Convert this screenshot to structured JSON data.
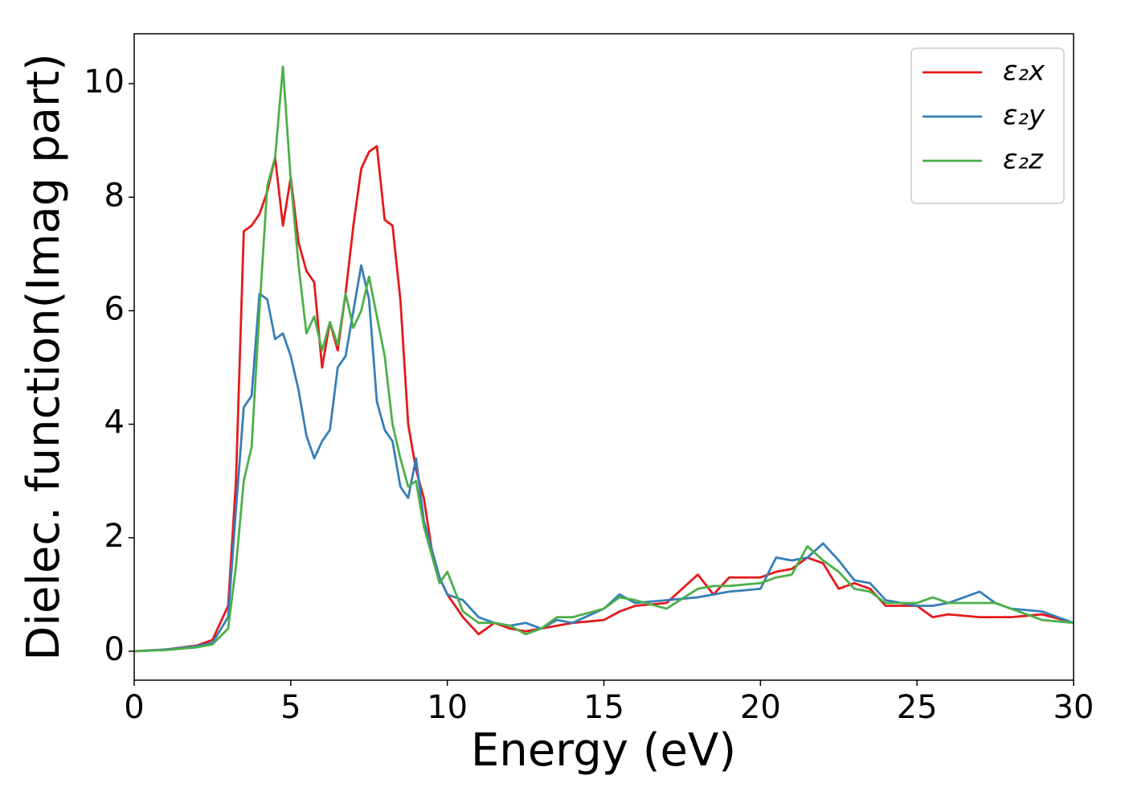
{
  "chart_data": {
    "type": "line",
    "xlabel": "Energy (eV)",
    "ylabel": "Dielec. function(Imag part)",
    "x": [
      0,
      1,
      2,
      2.5,
      3,
      3.25,
      3.5,
      3.75,
      4,
      4.25,
      4.5,
      4.75,
      5,
      5.25,
      5.5,
      5.75,
      6,
      6.25,
      6.5,
      6.75,
      7,
      7.25,
      7.5,
      7.75,
      8,
      8.25,
      8.5,
      8.75,
      9,
      9.25,
      9.5,
      9.75,
      10,
      10.5,
      11,
      11.5,
      12,
      12.5,
      13,
      13.5,
      14,
      15,
      15.5,
      16,
      17,
      18,
      18.5,
      19,
      20,
      20.5,
      21,
      21.5,
      22,
      22.5,
      23,
      23.5,
      24,
      25,
      25.5,
      26,
      27,
      27.5,
      28,
      29,
      30
    ],
    "series": [
      {
        "name": "ε₂x",
        "color": "#e41a1c",
        "values": [
          0,
          0.03,
          0.1,
          0.2,
          0.8,
          3,
          7.4,
          7.5,
          7.7,
          8.1,
          8.7,
          7.5,
          8.35,
          7.2,
          6.7,
          6.5,
          5.0,
          5.8,
          5.3,
          6.3,
          7.5,
          8.5,
          8.8,
          8.9,
          7.6,
          7.5,
          6.2,
          4.0,
          3.2,
          2.7,
          1.8,
          1.3,
          1.0,
          0.6,
          0.3,
          0.5,
          0.4,
          0.35,
          0.4,
          0.45,
          0.5,
          0.55,
          0.7,
          0.8,
          0.85,
          1.35,
          1.0,
          1.3,
          1.3,
          1.4,
          1.45,
          1.65,
          1.55,
          1.1,
          1.2,
          1.1,
          0.8,
          0.8,
          0.6,
          0.65,
          0.6,
          0.6,
          0.6,
          0.65,
          0.5
        ]
      },
      {
        "name": "ε₂y",
        "color": "#377eb8",
        "values": [
          0,
          0.03,
          0.09,
          0.15,
          0.6,
          2.5,
          4.3,
          4.5,
          6.3,
          6.2,
          5.5,
          5.6,
          5.2,
          4.6,
          3.8,
          3.4,
          3.7,
          3.9,
          5.0,
          5.2,
          6.0,
          6.8,
          6.2,
          4.4,
          3.9,
          3.7,
          2.9,
          2.7,
          3.4,
          2.3,
          1.8,
          1.3,
          1.0,
          0.9,
          0.6,
          0.5,
          0.45,
          0.5,
          0.4,
          0.55,
          0.5,
          0.75,
          1.0,
          0.85,
          0.9,
          0.95,
          1.0,
          1.05,
          1.1,
          1.65,
          1.6,
          1.65,
          1.9,
          1.6,
          1.25,
          1.2,
          0.9,
          0.8,
          0.8,
          0.85,
          1.05,
          0.85,
          0.75,
          0.7,
          0.5
        ]
      },
      {
        "name": "ε₂z",
        "color": "#4daf4a",
        "values": [
          0,
          0.02,
          0.07,
          0.12,
          0.4,
          1.5,
          3.0,
          3.6,
          6.0,
          8.2,
          8.7,
          10.3,
          8.3,
          6.8,
          5.6,
          5.9,
          5.3,
          5.8,
          5.4,
          6.3,
          5.7,
          6.0,
          6.6,
          5.9,
          5.2,
          4.0,
          3.4,
          2.9,
          3.0,
          2.2,
          1.7,
          1.2,
          1.4,
          0.7,
          0.5,
          0.5,
          0.45,
          0.3,
          0.4,
          0.6,
          0.6,
          0.75,
          0.95,
          0.9,
          0.75,
          1.1,
          1.15,
          1.15,
          1.2,
          1.3,
          1.35,
          1.85,
          1.6,
          1.4,
          1.1,
          1.05,
          0.85,
          0.85,
          0.95,
          0.85,
          0.85,
          0.85,
          0.75,
          0.55,
          0.5
        ]
      }
    ],
    "xlim": [
      0,
      30
    ],
    "xticks": [
      0,
      5,
      10,
      15,
      20,
      25,
      30
    ],
    "ylim": [
      -0.51,
      10.88
    ],
    "yticks": [
      0,
      2,
      4,
      6,
      8,
      10
    ],
    "legend": "upper right"
  }
}
